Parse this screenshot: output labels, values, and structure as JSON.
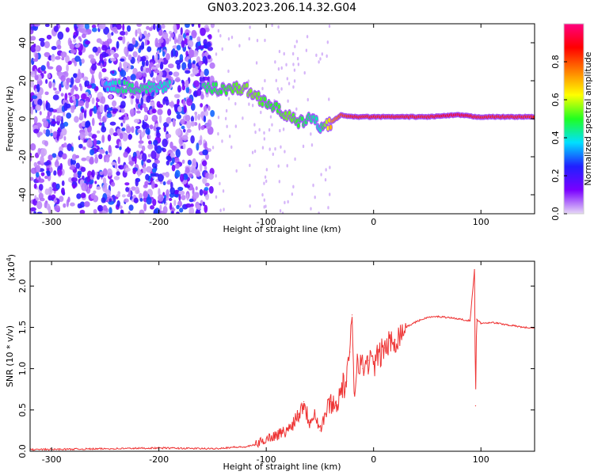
{
  "title": "GN03.2023.206.14.32.G04",
  "chart_data": [
    {
      "type": "heatmap",
      "xlabel": "Height of straight line (km)",
      "ylabel": "Frequency (Hz)",
      "xlim": [
        -320,
        150
      ],
      "ylim": [
        -50,
        50
      ],
      "x_ticks": [
        -300,
        -200,
        -100,
        0,
        100
      ],
      "y_ticks": [
        -40,
        -20,
        0,
        20,
        40
      ],
      "colorbar": {
        "label": "Normalized spectral amplitude",
        "range": [
          0,
          1
        ],
        "ticks": [
          "0.0",
          "0.2",
          "0.4",
          "0.6",
          "0.8"
        ],
        "tick_values": [
          0,
          0.2,
          0.4,
          0.6,
          0.8
        ],
        "colormap": [
          "#e6d8f6",
          "#7a00ff",
          "#2020ff",
          "#00e0ff",
          "#20ff20",
          "#ffff00",
          "#ff8000",
          "#ff0000",
          "#ff0080"
        ]
      },
      "ridge": {
        "x": [
          -250,
          -235,
          -215,
          -200,
          -160,
          -140,
          -120,
          -110,
          -100,
          -90,
          -80,
          -70,
          -60,
          -50,
          -40,
          -30,
          -20,
          -10,
          0,
          20,
          50,
          80,
          95,
          110,
          150
        ],
        "freq": [
          17,
          17,
          16,
          17,
          16,
          16,
          16,
          12,
          9,
          5,
          2,
          -3,
          1,
          -4,
          -2,
          2,
          1,
          1,
          1,
          1,
          1,
          2,
          1,
          1,
          1
        ],
        "amp": [
          0.35,
          0.45,
          0.45,
          0.4,
          0.45,
          0.5,
          0.55,
          0.55,
          0.5,
          0.5,
          0.55,
          0.5,
          0.45,
          0.4,
          0.7,
          0.8,
          0.85,
          0.85,
          0.85,
          0.85,
          0.85,
          0.9,
          0.85,
          0.85,
          0.85
        ]
      },
      "noise_region_xlim": [
        -320,
        -150
      ]
    },
    {
      "type": "line",
      "xlabel": "Height of straight line (km)",
      "ylabel": "SNR (10 * v/v)",
      "y_multiplier": "(x10",
      "y_multiplier_exp": "4",
      "y_multiplier_close": ")",
      "xlim": [
        -320,
        150
      ],
      "ylim": [
        0,
        2.3
      ],
      "x_ticks": [
        -300,
        -200,
        -100,
        0,
        100
      ],
      "y_ticks": [
        0.0,
        0.5,
        1.0,
        1.5,
        2.0
      ],
      "color": "#ee3333",
      "series": [
        {
          "x": [
            -320,
            -250,
            -200,
            -150,
            -130,
            -120,
            -110,
            -100,
            -90,
            -80,
            -70,
            -65,
            -60,
            -55,
            -50,
            -45,
            -40,
            -35,
            -30,
            -25,
            -22,
            -20,
            -18,
            -15,
            -10,
            -5,
            0,
            10,
            20,
            30,
            40,
            50,
            60,
            70,
            80,
            90,
            94,
            95,
            96,
            100,
            110,
            120,
            130,
            140,
            150
          ],
          "y": [
            0.02,
            0.03,
            0.04,
            0.03,
            0.05,
            0.05,
            0.08,
            0.15,
            0.2,
            0.25,
            0.45,
            0.6,
            0.35,
            0.5,
            0.25,
            0.45,
            0.6,
            0.55,
            0.75,
            0.85,
            1.2,
            1.65,
            0.7,
            1.15,
            1.0,
            1.1,
            1.05,
            1.25,
            1.35,
            1.5,
            1.57,
            1.62,
            1.63,
            1.62,
            1.6,
            1.58,
            2.2,
            0.55,
            1.6,
            1.55,
            1.56,
            1.54,
            1.52,
            1.5,
            1.49
          ]
        }
      ]
    }
  ]
}
